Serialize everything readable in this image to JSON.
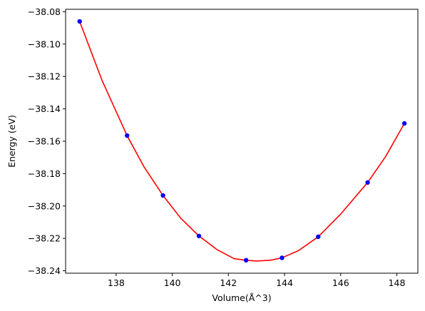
{
  "chart_data": {
    "type": "scatter",
    "title": "",
    "xlabel": "Volume(Å^3)",
    "ylabel": "Energy (eV)",
    "xlim": [
      136.2,
      148.75
    ],
    "ylim": [
      -38.2415,
      -38.0785
    ],
    "xticks": [
      138,
      140,
      142,
      144,
      146,
      148
    ],
    "yticks": [
      -38.24,
      -38.22,
      -38.2,
      -38.18,
      -38.16,
      -38.14,
      -38.12,
      -38.1,
      -38.08
    ],
    "xtick_labels": [
      "138",
      "140",
      "142",
      "144",
      "146",
      "148"
    ],
    "ytick_labels": [
      "−38.24",
      "−38.22",
      "−38.20",
      "−38.18",
      "−38.16",
      "−38.14",
      "−38.12",
      "−38.10",
      "−38.08"
    ],
    "series": [
      {
        "kind": "points",
        "color": "#0000ff",
        "x": [
          136.7,
          138.39,
          139.67,
          140.95,
          142.63,
          143.91,
          145.2,
          146.96,
          148.27
        ],
        "y": [
          -38.086,
          -38.1565,
          -38.1935,
          -38.2185,
          -38.2335,
          -38.232,
          -38.219,
          -38.1855,
          -38.149
        ]
      },
      {
        "kind": "fit-line",
        "color": "#ff0000",
        "x": [
          136.7,
          137.5,
          138.39,
          139.0,
          139.67,
          140.3,
          140.95,
          141.6,
          142.2,
          142.63,
          143.0,
          143.5,
          143.91,
          144.5,
          145.2,
          146.0,
          146.96,
          147.6,
          148.27
        ],
        "y": [
          -38.086,
          -38.1225,
          -38.1565,
          -38.176,
          -38.1935,
          -38.2075,
          -38.2185,
          -38.227,
          -38.2325,
          -38.2335,
          -38.234,
          -38.2335,
          -38.232,
          -38.2275,
          -38.219,
          -38.205,
          -38.1855,
          -38.1695,
          -38.149
        ]
      }
    ],
    "grid": false,
    "legend": "none"
  }
}
